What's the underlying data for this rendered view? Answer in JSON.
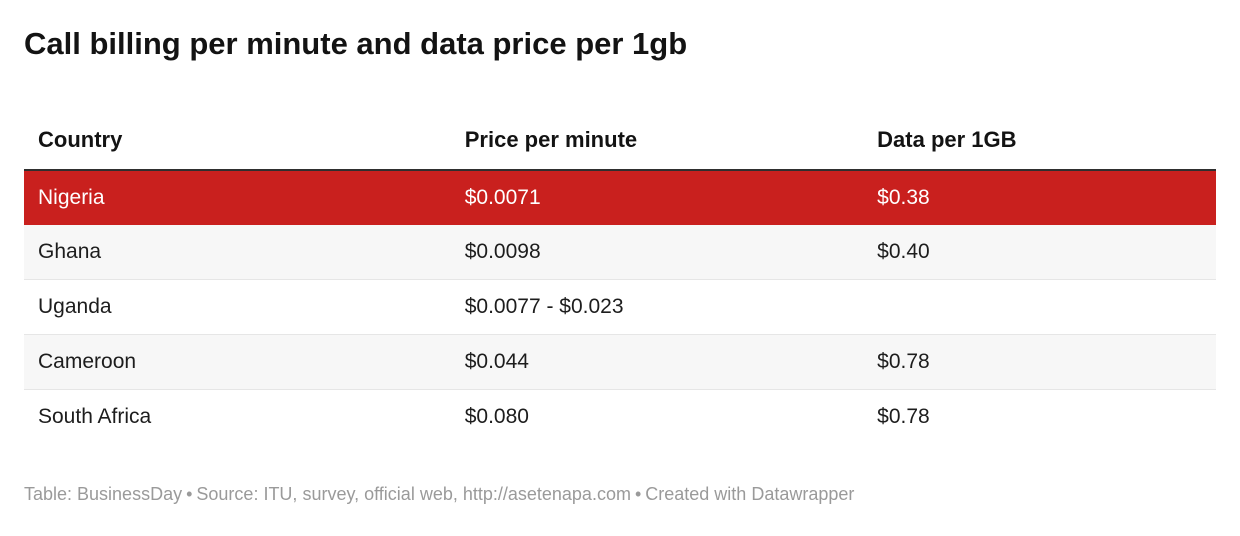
{
  "chart_data": {
    "type": "table",
    "title": "Call billing per minute and data price per 1gb",
    "columns": [
      "Country",
      "Price per minute",
      "Data per 1GB"
    ],
    "rows": [
      {
        "country": "Nigeria",
        "price_per_minute": "$0.0071",
        "data_per_1gb": "$0.38",
        "highlighted": true
      },
      {
        "country": "Ghana",
        "price_per_minute": "$0.0098",
        "data_per_1gb": "$0.40",
        "highlighted": false
      },
      {
        "country": "Uganda",
        "price_per_minute": "$0.0077 - $0.023",
        "data_per_1gb": "",
        "highlighted": false
      },
      {
        "country": "Cameroon",
        "price_per_minute": "$0.044",
        "data_per_1gb": "$0.78",
        "highlighted": false
      },
      {
        "country": "South Africa",
        "price_per_minute": "$0.080",
        "data_per_1gb": "$0.78",
        "highlighted": false
      }
    ],
    "legend_position": "none",
    "grid": "horizontal-dividers"
  },
  "footer": {
    "separator": "•",
    "parts": [
      "Table: BusinessDay",
      "Source: ITU, survey, official web, http://asetenapa.com",
      "Created with Datawrapper"
    ]
  },
  "colors": {
    "highlight_row_bg": "#c9201e",
    "highlight_row_text": "#ffffff",
    "header_rule": "#2f2f2f",
    "row_divider": "#e6e6e6",
    "zebra_bg": "#f7f7f7",
    "body_text": "#1d1d1d",
    "title_text": "#131313",
    "footer_text": "#9a9a9a"
  }
}
